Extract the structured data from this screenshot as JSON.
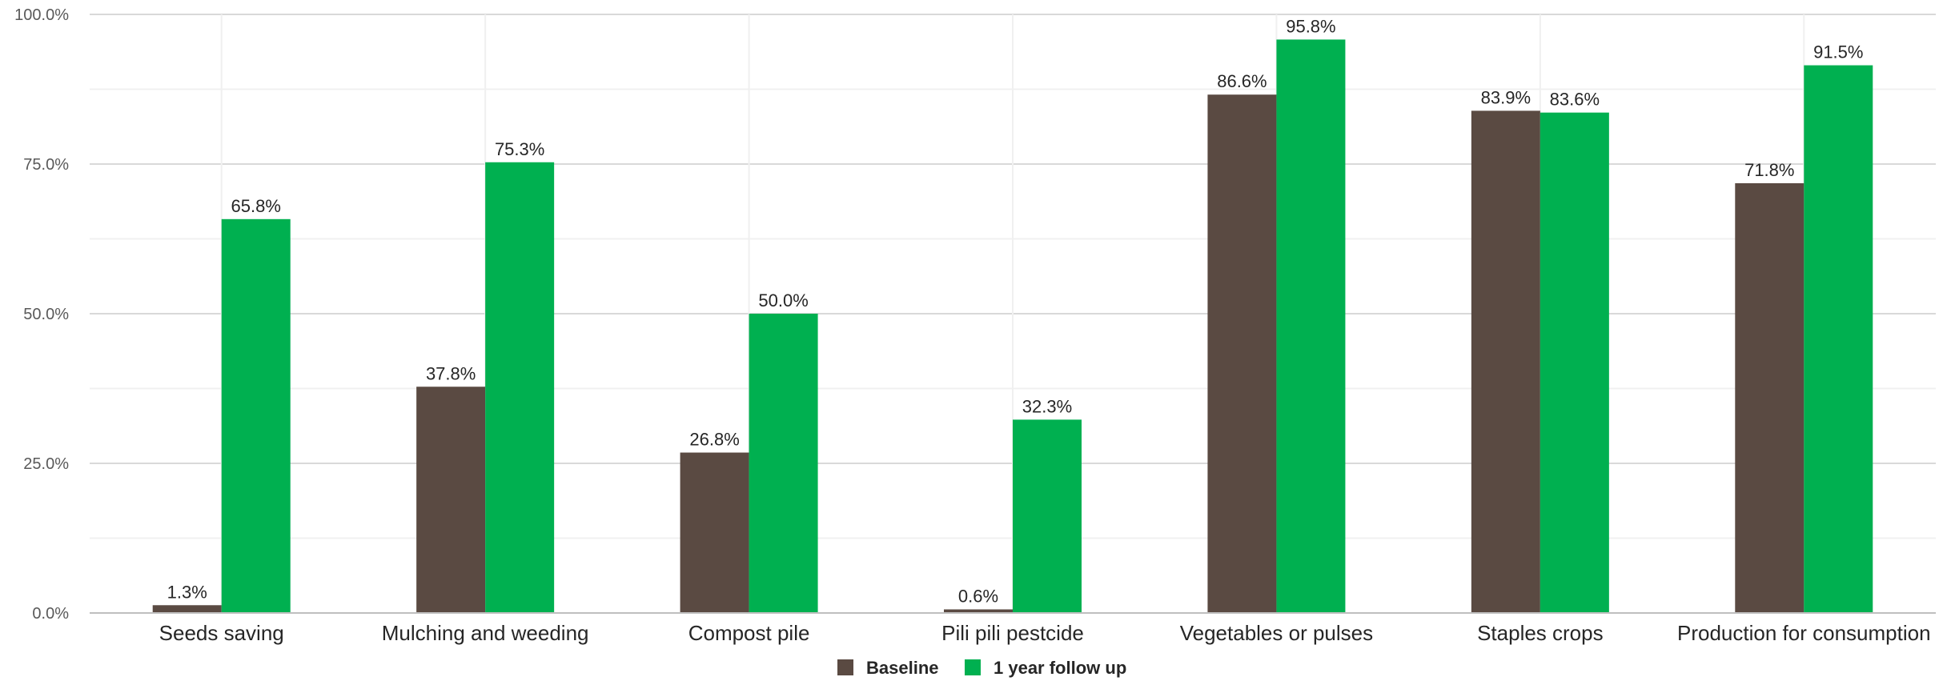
{
  "chart_data": {
    "type": "bar",
    "categories": [
      "Seeds saving",
      "Mulching and weeding",
      "Compost pile",
      "Pili pili pestcide",
      "Vegetables or pulses",
      "Staples crops",
      "Production for consumption"
    ],
    "series": [
      {
        "name": "Baseline",
        "color": "#5a4a42",
        "values": [
          1.3,
          37.8,
          26.8,
          0.6,
          86.6,
          83.9,
          71.8
        ],
        "labels": [
          "1.3%",
          "37.8%",
          "26.8%",
          "0.6%",
          "86.6%",
          "83.9%",
          "71.8%"
        ]
      },
      {
        "name": "1 year follow up",
        "color": "#00b050",
        "values": [
          65.8,
          75.3,
          50.0,
          32.3,
          95.8,
          83.6,
          91.5
        ],
        "labels": [
          "65.8%",
          "75.3%",
          "50.0%",
          "32.3%",
          "95.8%",
          "83.6%",
          "91.5%"
        ]
      }
    ],
    "y_ticks": [
      0,
      25,
      50,
      75,
      100
    ],
    "y_tick_labels": [
      "0.0%",
      "25.0%",
      "50.0%",
      "75.0%",
      "100.0%"
    ],
    "ylim": [
      0,
      100
    ],
    "grid": true,
    "legend_position": "bottom",
    "title": "",
    "xlabel": "",
    "ylabel": ""
  }
}
